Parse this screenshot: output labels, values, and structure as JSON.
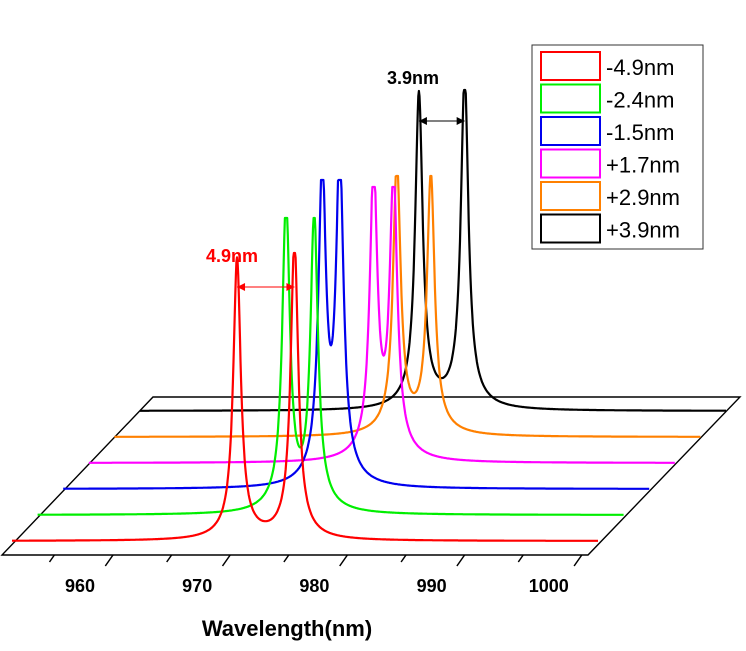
{
  "chart_data": {
    "type": "line",
    "style": "3d-waterfall",
    "title": "",
    "xlabel": "Wavelength(nm)",
    "ylabel": "",
    "xlim": [
      951.5,
      1001.5
    ],
    "xticks": [
      960,
      970,
      980,
      990,
      1000
    ],
    "xtick_labels": [
      "960",
      "970",
      "980",
      "990",
      "1000"
    ],
    "intensity_units": "a.u. (normalized)",
    "grid": false,
    "legend_position": "top-right",
    "series": [
      {
        "name": "-4.9nm",
        "color": "#ff0000",
        "peaks": [
          {
            "wavelength": 970.7,
            "intensity": 0.9
          },
          {
            "wavelength": 975.6,
            "intensity": 0.96
          }
        ]
      },
      {
        "name": "-2.4nm",
        "color": "#00ee00",
        "peaks": [
          {
            "wavelength": 972.7,
            "intensity": 0.99
          },
          {
            "wavelength": 975.1,
            "intensity": 0.94
          }
        ]
      },
      {
        "name": "-1.5nm",
        "color": "#0000ee",
        "peaks": [
          {
            "wavelength": 973.6,
            "intensity": 0.99
          },
          {
            "wavelength": 975.1,
            "intensity": 1.03
          }
        ]
      },
      {
        "name": "+1.7nm",
        "color": "#ff00ff",
        "peaks": [
          {
            "wavelength": 975.8,
            "intensity": 0.92
          },
          {
            "wavelength": 977.5,
            "intensity": 0.89
          }
        ]
      },
      {
        "name": "+2.9nm",
        "color": "#ff8000",
        "peaks": [
          {
            "wavelength": 975.6,
            "intensity": 0.87
          },
          {
            "wavelength": 978.5,
            "intensity": 0.83
          }
        ]
      },
      {
        "name": "+3.9nm",
        "color": "#000000",
        "peaks": [
          {
            "wavelength": 975.3,
            "intensity": 1.01
          },
          {
            "wavelength": 979.2,
            "intensity": 1.07
          }
        ]
      }
    ],
    "annotations": [
      {
        "text": "4.9nm",
        "series": "-4.9nm",
        "color": "#ff0000"
      },
      {
        "text": "3.9nm",
        "series": "+3.9nm",
        "color": "#000000"
      }
    ]
  }
}
